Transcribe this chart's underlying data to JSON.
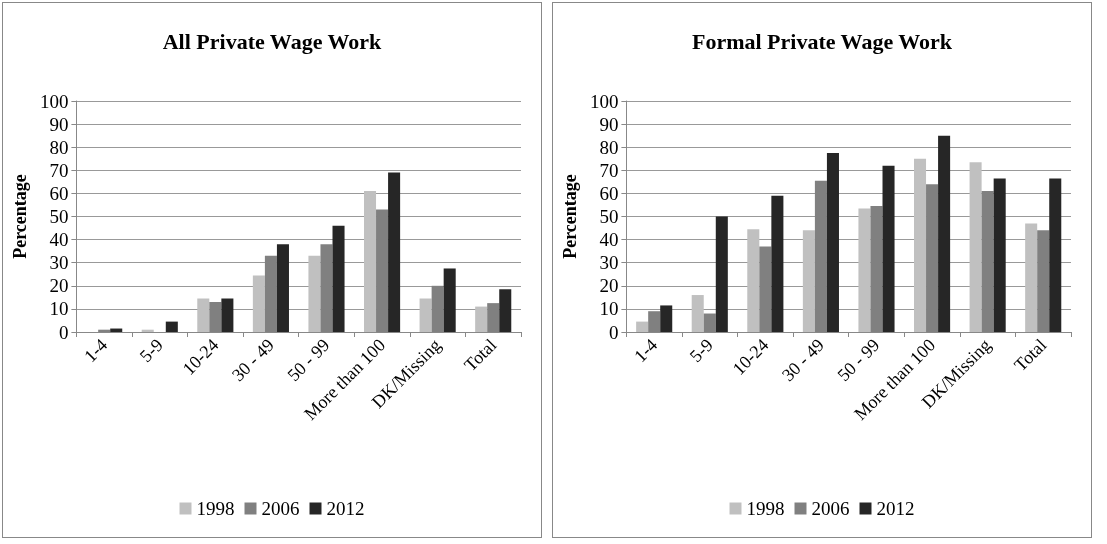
{
  "chart_data": [
    {
      "type": "bar",
      "title": "All Private Wage Work",
      "ylabel": "Percentage",
      "categories": [
        "1-4",
        "5-9",
        "10-24",
        "30 - 49",
        "50 - 99",
        "More than 100",
        "DK/Missing",
        "Total"
      ],
      "series": [
        {
          "name": "1998",
          "color": "#c0c0c0",
          "values": [
            0,
            1,
            14.5,
            24.5,
            33,
            61,
            14.5,
            11
          ]
        },
        {
          "name": "2006",
          "color": "#808080",
          "values": [
            1,
            null,
            13,
            33,
            38,
            53,
            20,
            12.5
          ]
        },
        {
          "name": "2012",
          "color": "#262626",
          "values": [
            1.5,
            4.5,
            14.5,
            38,
            46,
            69,
            27.5,
            18.5
          ]
        }
      ],
      "ylim": [
        0,
        100
      ],
      "yticks": [
        0,
        10,
        20,
        30,
        40,
        50,
        60,
        70,
        80,
        90,
        100
      ],
      "grid": "y",
      "legend": "bottom"
    },
    {
      "type": "bar",
      "title": "Formal Private Wage Work",
      "ylabel": "Percentage",
      "categories": [
        "1-4",
        "5-9",
        "10-24",
        "30 - 49",
        "50 - 99",
        "More than 100",
        "DK/Missing",
        "Total"
      ],
      "series": [
        {
          "name": "1998",
          "color": "#c0c0c0",
          "values": [
            4.5,
            16,
            44.5,
            44,
            53.5,
            75,
            73.5,
            47
          ]
        },
        {
          "name": "2006",
          "color": "#808080",
          "values": [
            9,
            8,
            37,
            65.5,
            54.5,
            64,
            61,
            44
          ]
        },
        {
          "name": "2012",
          "color": "#262626",
          "values": [
            11.5,
            50,
            59,
            77.5,
            72,
            85,
            66.5,
            66.5
          ]
        }
      ],
      "ylim": [
        0,
        100
      ],
      "yticks": [
        0,
        10,
        20,
        30,
        40,
        50,
        60,
        70,
        80,
        90,
        100
      ],
      "grid": "y",
      "legend": "bottom"
    }
  ]
}
